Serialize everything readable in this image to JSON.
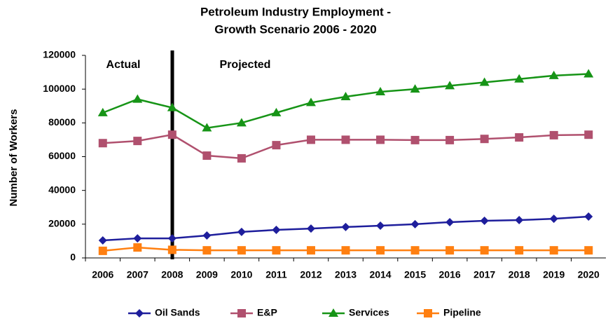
{
  "chart_data": {
    "type": "line",
    "title": [
      "Petroleum Industry Employment -",
      "Growth Scenario  2006 - 2020"
    ],
    "y_label": "Number of Workers",
    "annotations": [
      "Actual",
      "Projected"
    ],
    "categories": [
      "2006",
      "2007",
      "2008",
      "2009",
      "2010",
      "2011",
      "2012",
      "2013",
      "2014",
      "2015",
      "2016",
      "2017",
      "2018",
      "2019",
      "2020"
    ],
    "ylim": [
      0,
      120000
    ],
    "yticks": [
      0,
      20000,
      40000,
      60000,
      80000,
      100000,
      120000
    ],
    "grid": false,
    "legend": "bottom",
    "series": [
      {
        "name": "Oil Sands",
        "color": "#1e1e9c",
        "marker": "diamond",
        "values": [
          10400,
          11600,
          11600,
          13300,
          15400,
          16600,
          17400,
          18300,
          19100,
          20000,
          21200,
          22000,
          22400,
          23200,
          24500
        ]
      },
      {
        "name": "E&P",
        "color": "#b0506e",
        "marker": "square",
        "values": [
          68000,
          69300,
          73000,
          60600,
          59000,
          66800,
          70000,
          70000,
          70000,
          69800,
          69800,
          70500,
          71400,
          72700,
          73000
        ]
      },
      {
        "name": "Services",
        "color": "#169416",
        "marker": "triangle",
        "values": [
          86000,
          94000,
          89000,
          77000,
          80000,
          86000,
          92000,
          95500,
          98400,
          100000,
          102000,
          104000,
          106000,
          108000,
          109000
        ]
      },
      {
        "name": "Pipeline",
        "color": "#ff7f10",
        "marker": "square",
        "values": [
          4200,
          6200,
          4800,
          4500,
          4500,
          4500,
          4500,
          4500,
          4500,
          4500,
          4500,
          4500,
          4500,
          4500,
          4500
        ]
      }
    ]
  }
}
